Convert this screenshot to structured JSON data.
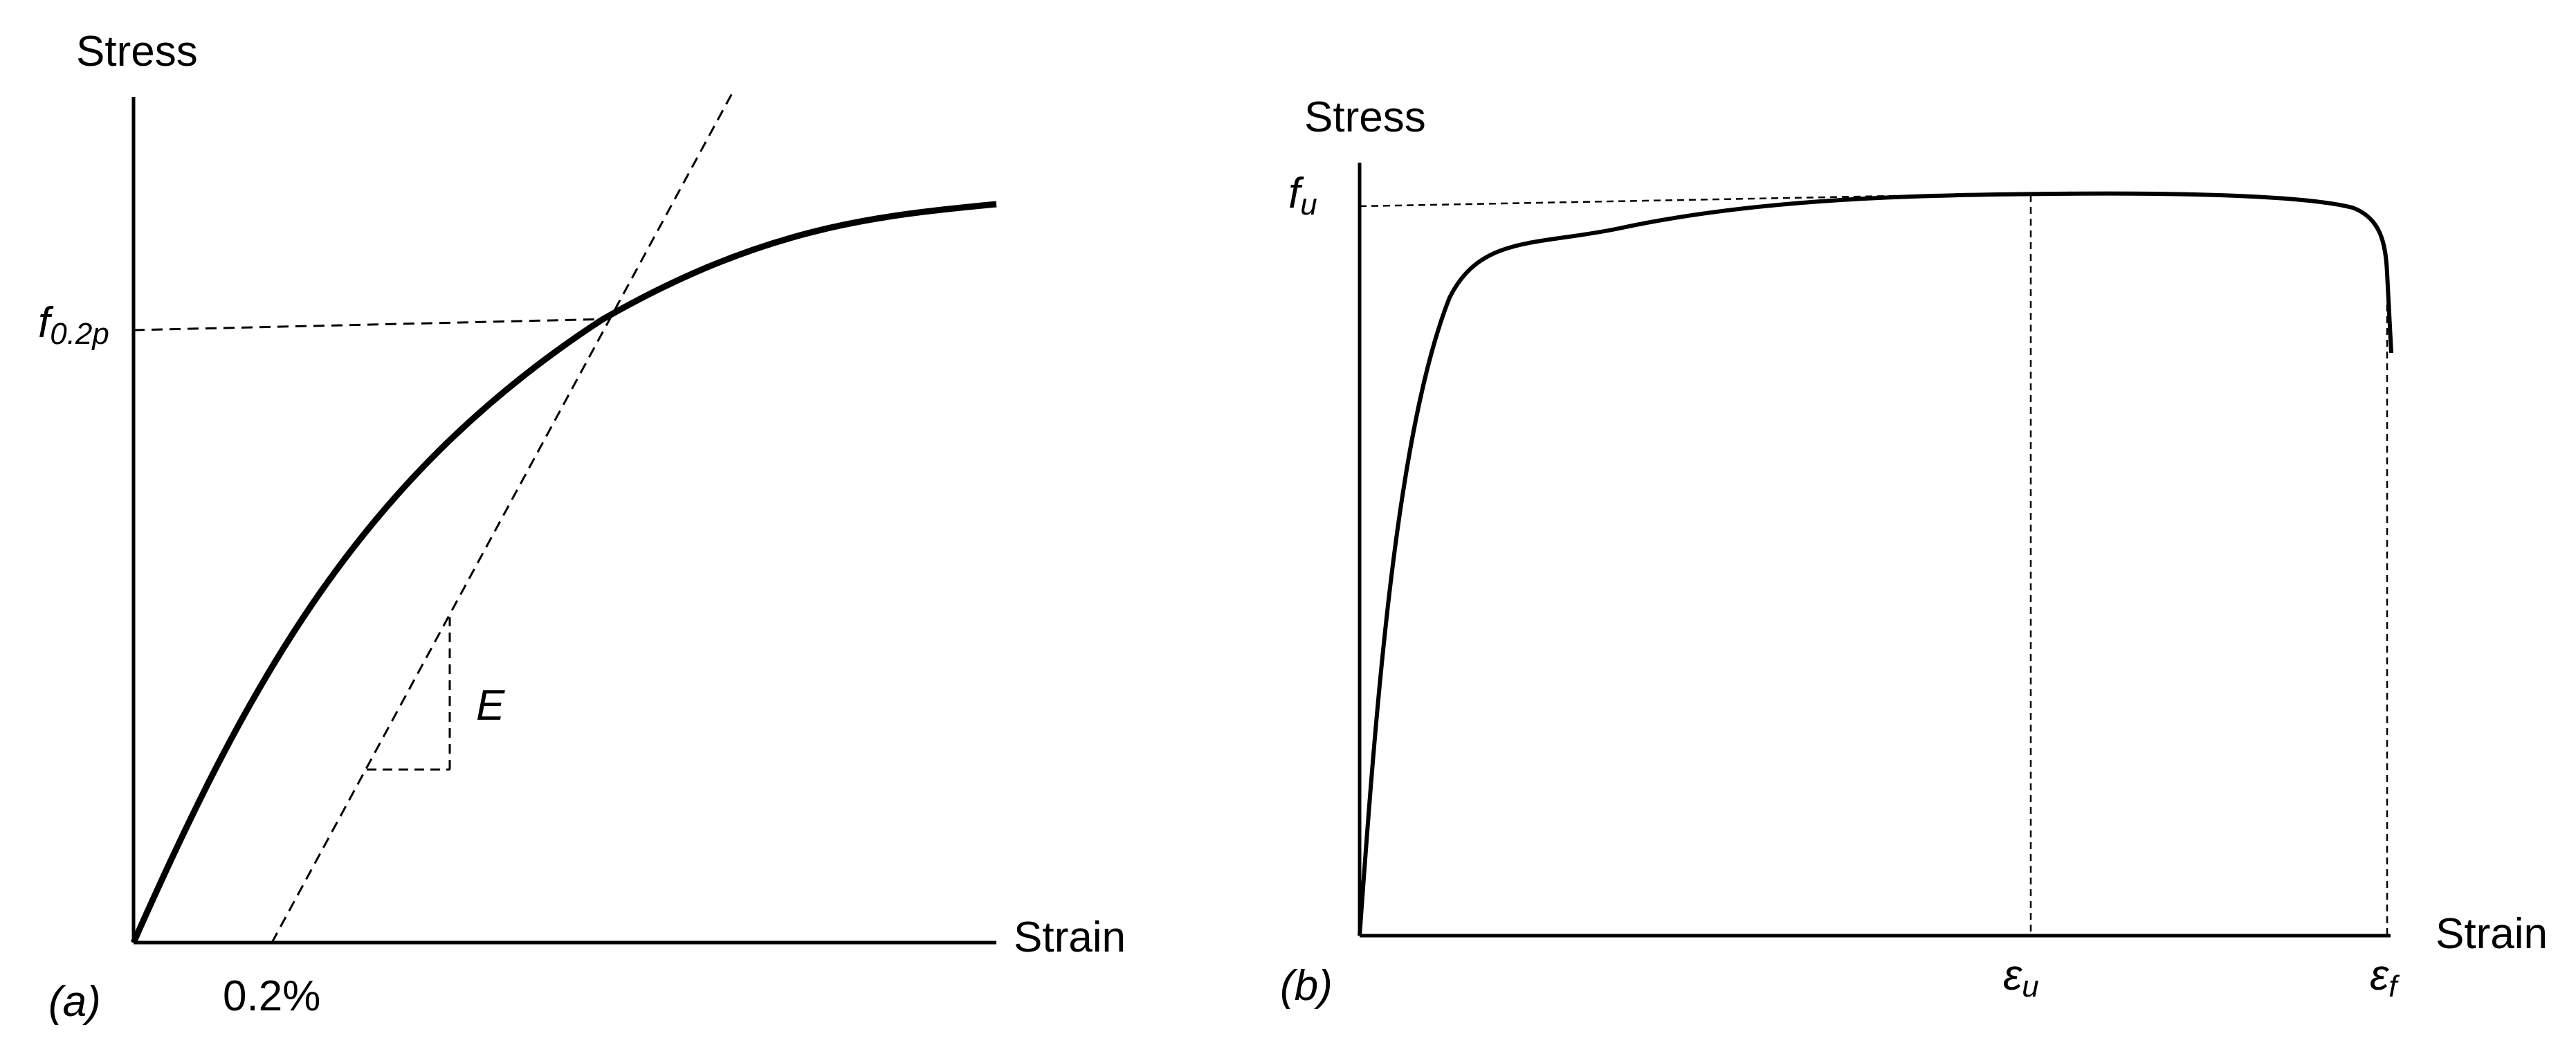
{
  "panel_a": {
    "y_axis_label": "Stress",
    "x_axis_label": "Strain",
    "panel_label": "(a)",
    "yield_label_main": "f",
    "yield_label_sub": "0.2p",
    "offset_label": "0.2%",
    "modulus_label": "E"
  },
  "panel_b": {
    "y_axis_label": "Stress",
    "x_axis_label": "Strain",
    "panel_label": "(b)",
    "ultimate_label_main": "f",
    "ultimate_label_sub": "u",
    "uniform_strain_main": "ε",
    "uniform_strain_sub": "u",
    "fracture_strain_main": "ε",
    "fracture_strain_sub": "f"
  },
  "colors": {
    "ink": "#000000",
    "background": "#ffffff"
  }
}
